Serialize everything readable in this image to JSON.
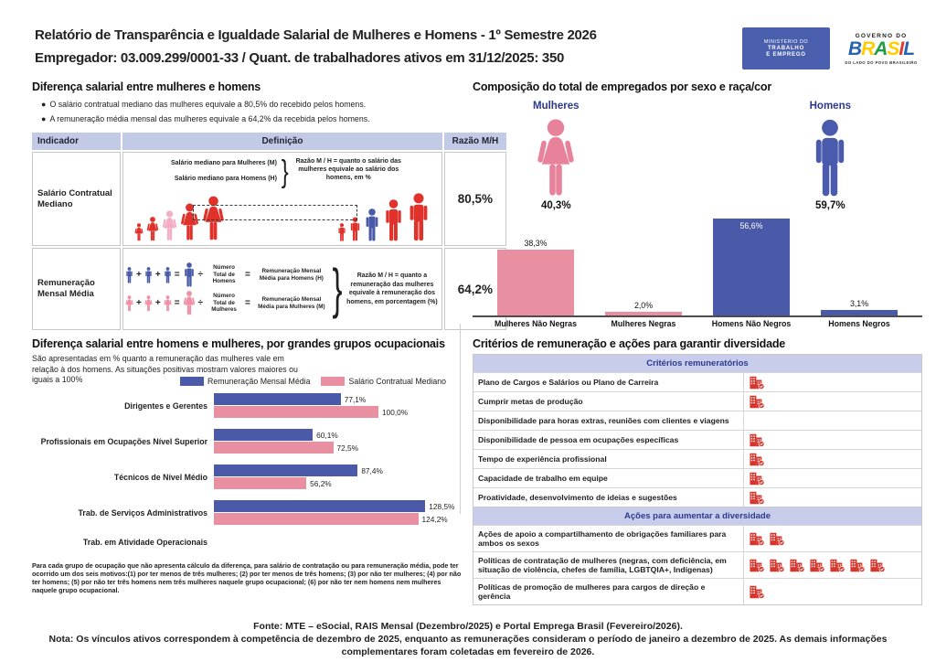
{
  "header": {
    "title_line1": "Relatório de Transparência e Igualdade Salarial de Mulheres e Homens - 1º Semestre 2026",
    "title_line2": "Empregador: 03.009.299/0001-33 / Quant. de trabalhadores ativos em 31/12/2025: 350",
    "mte_logo_lines": [
      "MINISTÉRIO DO",
      "TRABALHO",
      "E EMPREGO"
    ],
    "gov_logo": {
      "top": "GOVERNO DO",
      "brand": "BRASIL",
      "bottom": "DO LADO DO POVO BRASILEIRO"
    },
    "brasil_letter_colors": [
      "#2864ae",
      "#ffcd00",
      "#1f9d44",
      "#ffcd00",
      "#e23b30",
      "#2864ae"
    ]
  },
  "salary_gap": {
    "title": "Diferença salarial entre mulheres e homens",
    "bullets": [
      "O salário contratual mediano das mulheres equivale a 80,5% do recebido pelos homens.",
      "A remuneração média mensal das mulheres equivale a 64,2% da recebida pelos homens."
    ],
    "table": {
      "col_indicator": "Indicador",
      "col_definition": "Definição",
      "col_ratio": "Razão M/H",
      "row1": {
        "indicator": "Salário Contratual Mediano",
        "label_women": "Salário mediano para Mulheres (M)",
        "label_men": "Salário mediano para Homens (H)",
        "note": "Razão M / H = quanto o salário das mulheres equivale ao salário dos homens, em %",
        "ratio": "80,5%"
      },
      "row2": {
        "indicator": "Remuneração Mensal Média",
        "men_divisor": "Número Total de Homens",
        "men_result": "Remuneração Mensal Média para Homens (H)",
        "women_divisor": "Número Total de Mulheres",
        "women_result": "Remuneração Mensal Média para Mulheres (M)",
        "note": "Razão M / H = quanto a remuneração das mulheres equivale à remuneração dos homens, em porcentagem (%)",
        "ratio": "64,2%",
        "plus": "+",
        "equals": "=",
        "divide": "÷"
      }
    }
  },
  "occupation_section": {
    "title": "Diferença salarial entre homens e mulheres, por grandes grupos ocupacionais",
    "subtitle": "São apresentadas em % quanto a remuneração das mulheres vale em relação à dos homens. As situações positivas mostram valores maiores ou iguais a 100%",
    "footnote": "Para cada grupo de ocupação que não apresenta cálculo da diferença, para salário de contratação ou para remuneração média, pode ter ocorrido um dos seis motivos:(1) por ter menos de três mulheres; (2) por ter menos de três homens; (3) por não ter mulheres; (4) por não ter homens; (5) por não ter três homens nem três mulheres naquele grupo ocupacional; (6) por não ter nem homens nem mulheres naquele grupo ocupacional."
  },
  "composition_section": {
    "title": "Composição do total de empregados por sexo e raça/cor",
    "women_label": "Mulheres",
    "women_pct": "40,3%",
    "men_label": "Homens",
    "men_pct": "59,7%"
  },
  "criteria_section": {
    "title": "Critérios de remuneração e ações para garantir diversidade",
    "sections": [
      {
        "header": "Critérios remuneratórios",
        "rows": [
          {
            "label": "Plano de Cargos e Salários ou Plano de Carreira",
            "icons": 1
          },
          {
            "label": "Cumprir metas de produção",
            "icons": 1
          },
          {
            "label": "Disponibilidade para horas extras, reuniões com clientes e viagens",
            "icons": 0
          },
          {
            "label": "Disponibilidade de pessoa em ocupações específicas",
            "icons": 1
          },
          {
            "label": "Tempo de experiência profissional",
            "icons": 1
          },
          {
            "label": "Capacidade de trabalho em equipe",
            "icons": 1
          },
          {
            "label": "Proatividade, desenvolvimento de ideias e sugestões",
            "icons": 1
          }
        ]
      },
      {
        "header": "Ações para aumentar a diversidade",
        "rows": [
          {
            "label": "Ações de apoio a compartilhamento de obrigações familiares para ambos os sexos",
            "icons": 2
          },
          {
            "label": "Políticas de contratação de mulheres (negras, com deficiência, em situação de violência, chefes de família, LGBTQIA+, Indígenas)",
            "icons": 7
          },
          {
            "label": "Políticas de promoção de mulheres para cargos de direção e gerência",
            "icons": 1
          }
        ]
      }
    ]
  },
  "footer": {
    "fonte": "Fonte: MTE – eSocial, RAIS Mensal (Dezembro/2025) e Portal Emprega Brasil (Fevereiro/2026).",
    "nota": "Nota: Os vínculos ativos correspondem à competência de dezembro de 2025, enquanto as remunerações consideram o período de janeiro a dezembro de 2025. As demais informações complementares foram coletadas em fevereiro de 2026."
  },
  "colors": {
    "blue": "#4a5aa8",
    "pink": "#e890a2",
    "red": "#e0312a",
    "pale_pink": "#f3aec6",
    "navy": "#2b3990",
    "table_header_bg": "#c3cae5",
    "criteria_header_bg": "#c7cdea",
    "icon_red": "#d6352b"
  },
  "chart_data": [
    {
      "type": "bar",
      "title": "Composição do total de empregados por sexo e raça/cor",
      "categories": [
        "Mulheres Não Negras",
        "Mulheres Negras",
        "Homens Não Negros",
        "Homens Negros"
      ],
      "values": [
        38.3,
        2.0,
        56.6,
        3.1
      ],
      "value_labels": [
        "38,3%",
        "2,0%",
        "56,6%",
        "3,1%"
      ],
      "colors": [
        "#e890a2",
        "#e890a2",
        "#4a5aa8",
        "#4a5aa8"
      ],
      "summary": {
        "mulheres": "40,3%",
        "homens": "59,7%"
      },
      "xlabel": "",
      "ylabel": "",
      "ylim": [
        0,
        60
      ],
      "grid": false,
      "legend_position": "none"
    },
    {
      "type": "bar-horizontal",
      "title": "Diferença salarial entre homens e mulheres, por grandes grupos ocupacionais",
      "categories": [
        "Dirigentes e Gerentes",
        "Profissionais em Ocupações Nível Superior",
        "Técnicos de Nível Médio",
        "Trab. de Serviços Administrativos",
        "Trab. em Atividade Operacionais"
      ],
      "series": [
        {
          "name": "Remuneração Mensal Média",
          "color": "#4a5aa8",
          "values": [
            77.1,
            60.1,
            87.4,
            128.5,
            null
          ],
          "labels": [
            "77,1%",
            "60,1%",
            "87,4%",
            "128,5%",
            ""
          ]
        },
        {
          "name": "Salário Contratual Mediano",
          "color": "#e890a2",
          "values": [
            100.0,
            72.5,
            56.2,
            124.2,
            null
          ],
          "labels": [
            "100,0%",
            "72,5%",
            "56,2%",
            "124,2%",
            ""
          ]
        }
      ],
      "xlabel": "",
      "ylabel": "",
      "xlim": [
        0,
        140
      ],
      "grid": false,
      "legend_position": "top"
    }
  ]
}
